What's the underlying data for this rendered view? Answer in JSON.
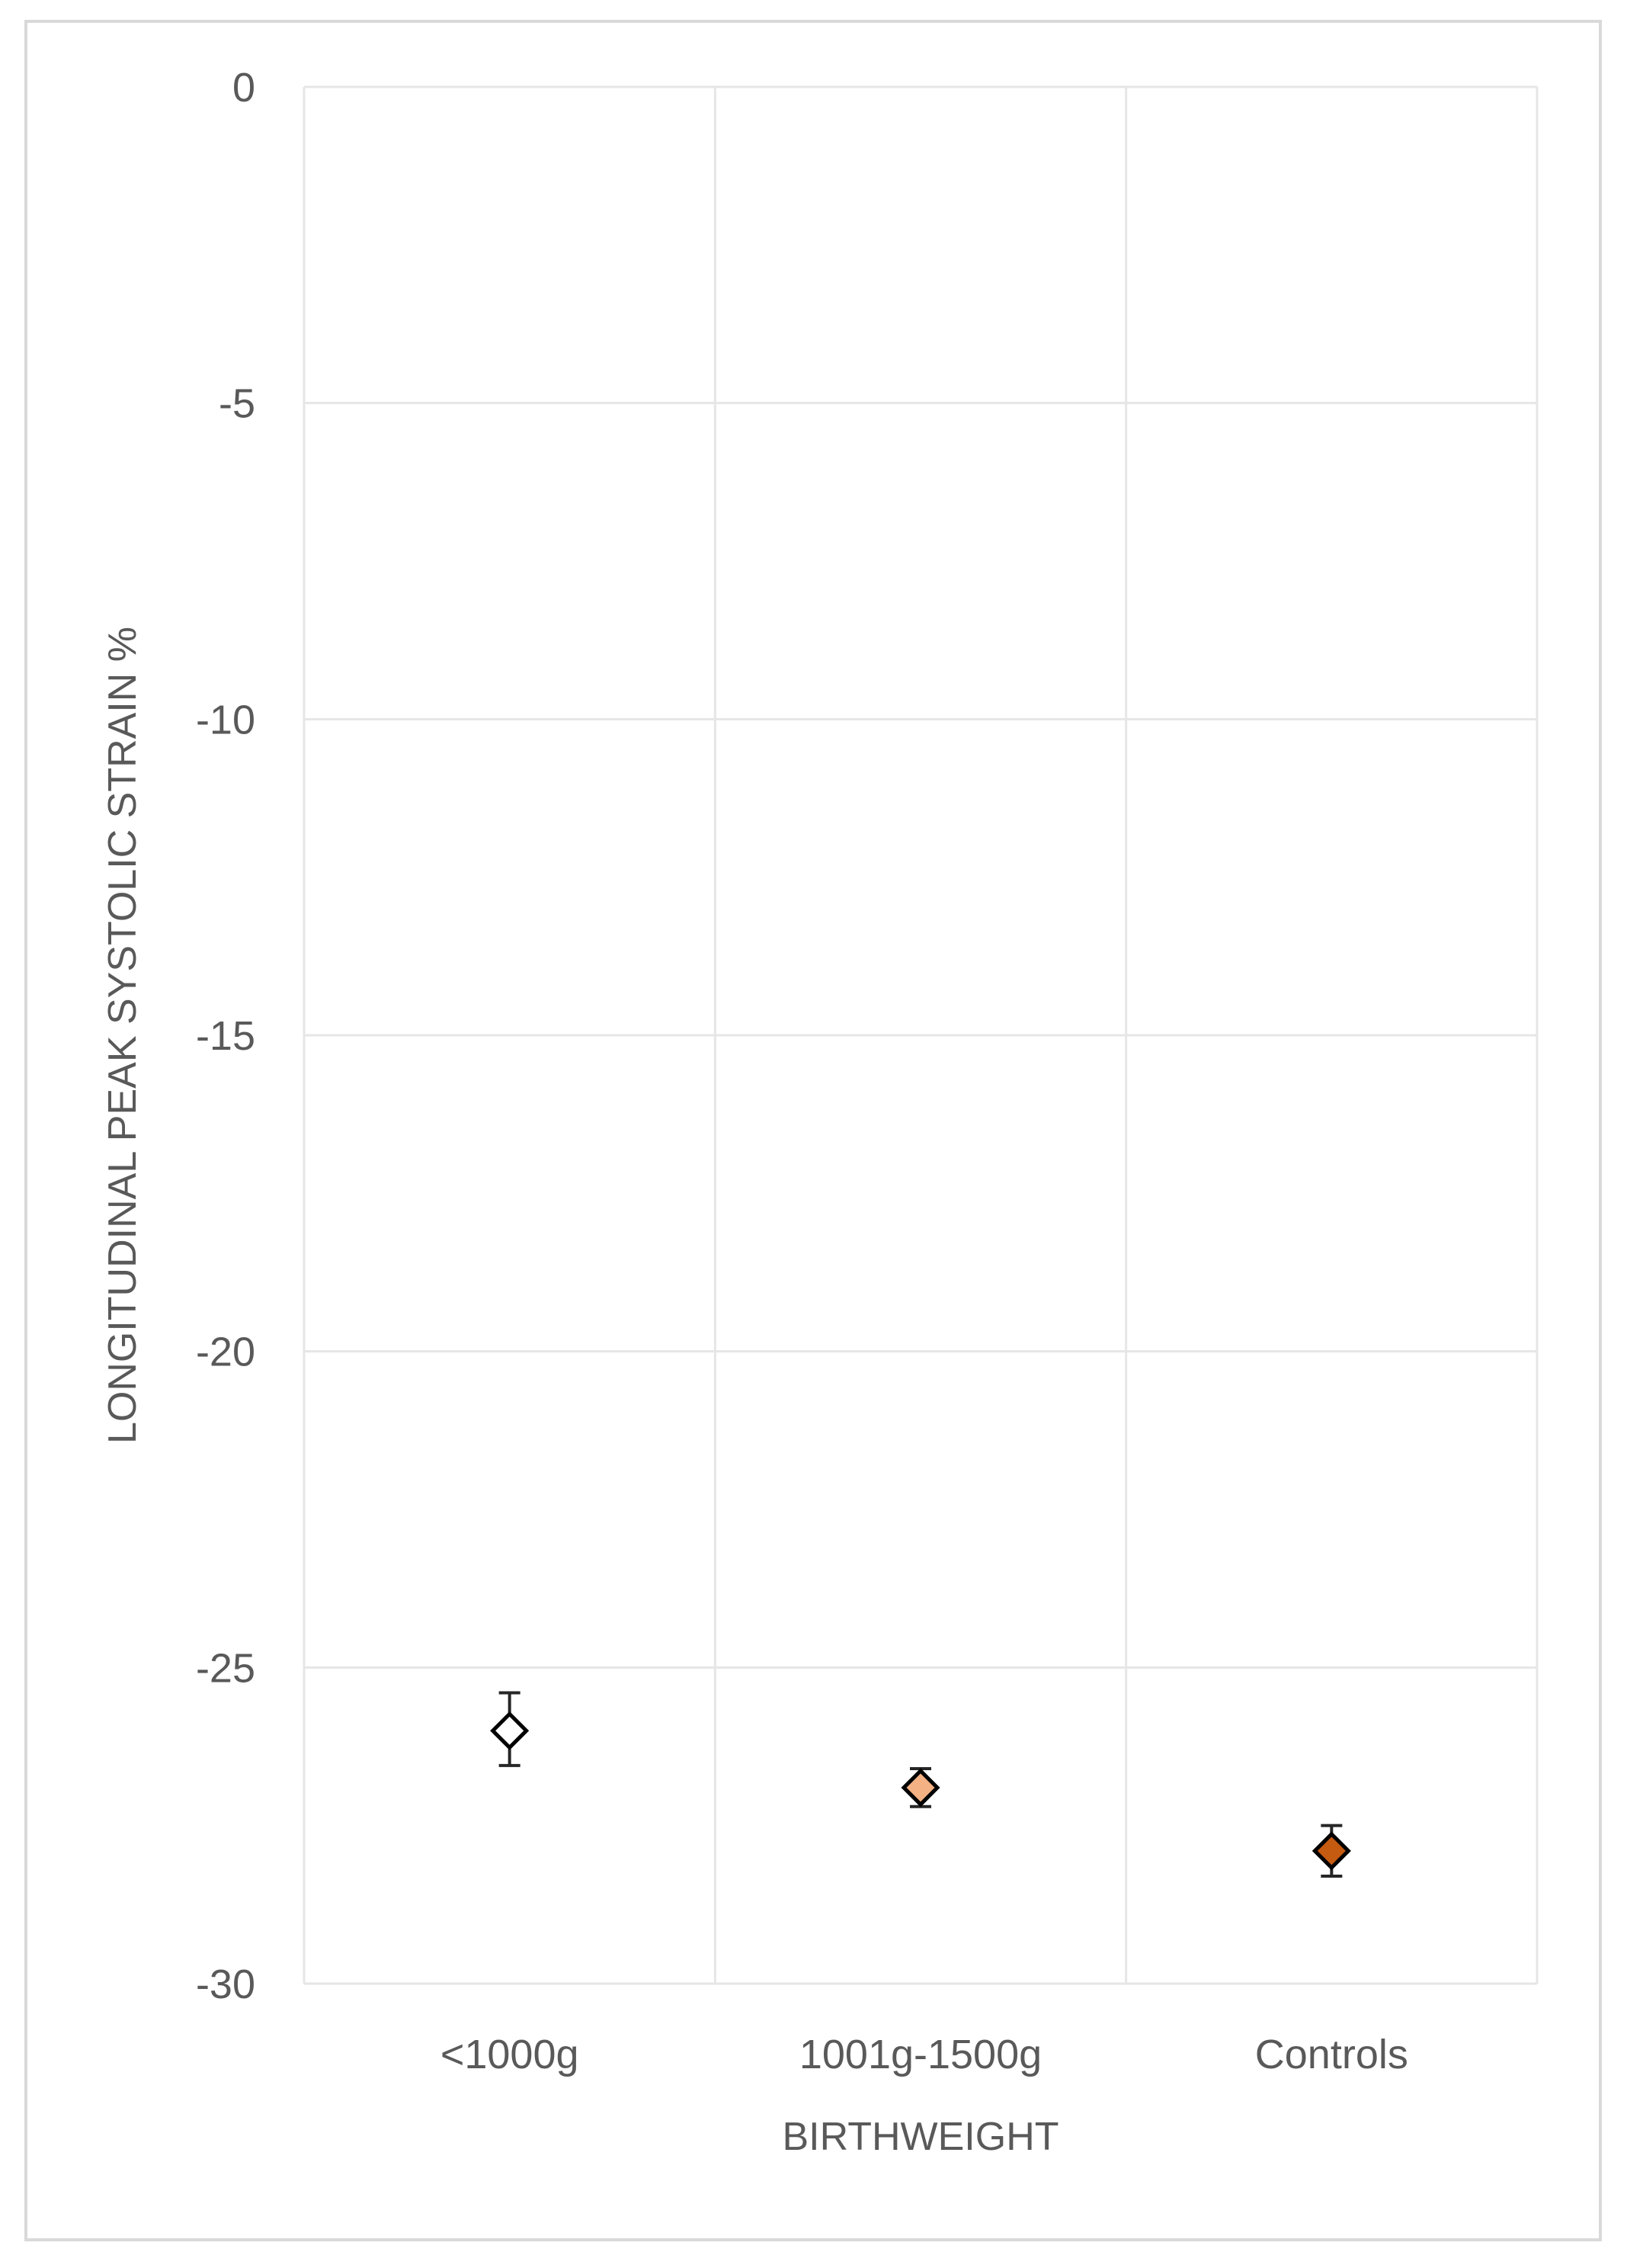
{
  "chart_data": {
    "type": "scatter",
    "xlabel": "BIRTHWEIGHT",
    "ylabel": "LONGITUDINAL PEAK SYSTOLIC STRAIN %",
    "categories": [
      "<1000g",
      "1001g-1500g",
      "Controls"
    ],
    "ylim": [
      -30,
      0
    ],
    "yticks": [
      0,
      -5,
      -10,
      -15,
      -20,
      -25,
      -30
    ],
    "grid": true,
    "legend": "none",
    "points": [
      {
        "category": "<1000g",
        "value": -26.0,
        "err_low": -26.55,
        "err_high": -25.4,
        "color": "#ffffff"
      },
      {
        "category": "1001g-1500g",
        "value": -26.9,
        "err_low": -27.2,
        "err_high": -26.6,
        "color": "#f4b183"
      },
      {
        "category": "Controls",
        "value": -27.9,
        "err_low": -28.3,
        "err_high": -27.5,
        "color": "#c55a11"
      }
    ]
  }
}
